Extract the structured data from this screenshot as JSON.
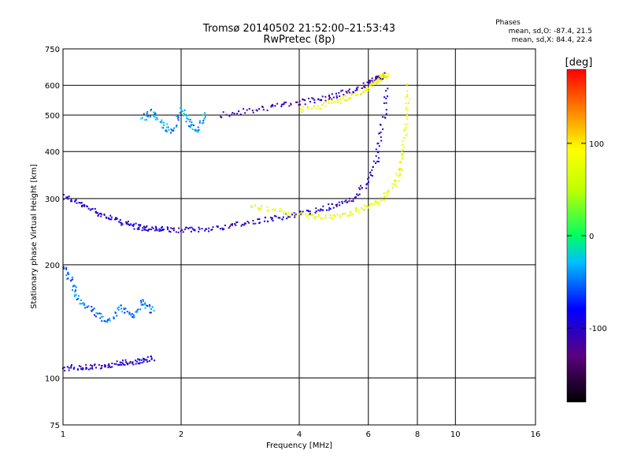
{
  "chart_data": {
    "type": "scatter",
    "title": "Tromsø 20140502 21:52:00–21:53:43",
    "subtitle": "RwPretec (8p)",
    "stats": {
      "heading": "Phases",
      "o_mode": "mean, sd,O: -87.4, 21.5",
      "x_mode": "mean, sd,X:  84.4, 22.4"
    },
    "xlabel": "Frequency [MHz]",
    "ylabel": "Stationary phase Virtual Height [km]",
    "x_scale": "log",
    "y_scale": "log",
    "xlim": [
      1,
      16
    ],
    "ylim": [
      75,
      750
    ],
    "x_ticks": [
      1,
      2,
      4,
      6,
      8,
      10,
      16
    ],
    "y_ticks": [
      75,
      100,
      200,
      300,
      400,
      500,
      600,
      750
    ],
    "grid": true,
    "colorbar": {
      "label": "[deg]",
      "range": [
        -180,
        180
      ],
      "ticks": [
        100,
        0,
        -100
      ]
    },
    "series": [
      {
        "trace": "o-mode-F2",
        "phase": -100,
        "x": [
          1.0,
          1.1,
          1.2,
          1.3,
          1.4,
          1.5,
          1.6,
          1.7,
          1.8,
          2.0,
          2.2,
          2.5,
          2.8,
          3.2,
          3.6,
          4.0,
          4.5,
          5.0,
          5.5,
          6.0,
          6.3,
          6.5,
          6.7
        ],
        "y": [
          305,
          290,
          278,
          268,
          260,
          254,
          250,
          249,
          248,
          247,
          248,
          251,
          256,
          262,
          268,
          273,
          279,
          288,
          300,
          330,
          380,
          460,
          590
        ]
      },
      {
        "trace": "x-mode-F2",
        "phase": 80,
        "x": [
          3.0,
          3.5,
          4.0,
          4.5,
          5.0,
          5.5,
          6.0,
          6.5,
          7.0,
          7.2,
          7.4,
          7.5,
          7.6
        ],
        "y": [
          286,
          278,
          272,
          268,
          270,
          276,
          285,
          298,
          325,
          355,
          410,
          500,
          610
        ]
      },
      {
        "trace": "o-mode-upper",
        "phase": -110,
        "x": [
          2.5,
          3.0,
          3.5,
          4.0,
          4.5,
          5.0,
          5.5,
          6.0,
          6.3,
          6.6
        ],
        "y": [
          500,
          513,
          528,
          540,
          551,
          565,
          582,
          605,
          625,
          640
        ]
      },
      {
        "trace": "x-mode-upper",
        "phase": 85,
        "x": [
          4.0,
          4.5,
          5.0,
          5.5,
          6.0,
          6.3,
          6.5,
          6.7
        ],
        "y": [
          515,
          528,
          545,
          563,
          590,
          612,
          630,
          640
        ]
      },
      {
        "trace": "spread-upper",
        "phase": -40,
        "x": [
          1.6,
          1.7,
          1.8,
          1.9,
          2.0,
          2.1,
          2.2,
          2.3
        ],
        "y": [
          490,
          510,
          470,
          450,
          520,
          480,
          455,
          500
        ]
      },
      {
        "trace": "low-E-layer",
        "phase": -100,
        "x": [
          1.0,
          1.1,
          1.2,
          1.3,
          1.4,
          1.5,
          1.6,
          1.7
        ],
        "y": [
          106,
          107,
          107,
          108,
          110,
          110,
          111,
          113
        ]
      },
      {
        "trace": "spread-low",
        "phase": -50,
        "x": [
          1.0,
          1.05,
          1.1,
          1.2,
          1.3,
          1.4,
          1.5,
          1.6,
          1.7
        ],
        "y": [
          200,
          180,
          160,
          150,
          140,
          155,
          145,
          160,
          150
        ]
      }
    ]
  }
}
